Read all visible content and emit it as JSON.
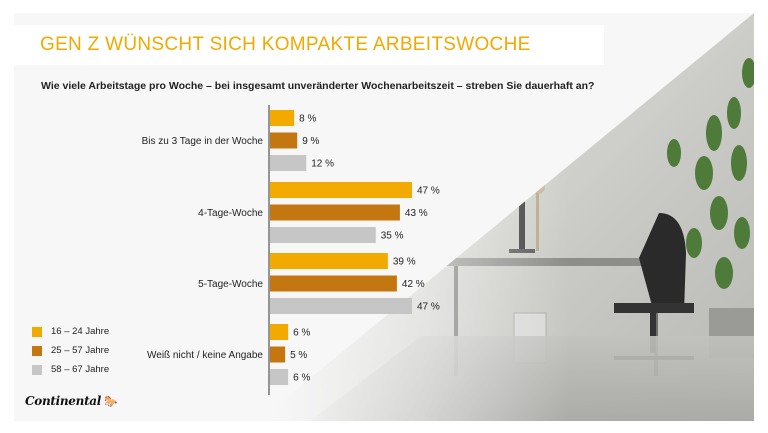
{
  "title": "GEN Z WÜNSCHT SICH KOMPAKTE ARBEITSWOCHE",
  "question": "Wie viele Arbeitstage pro Woche – bei insgesamt unveränderter Wochenarbeitszeit – streben Sie dauerhaft an?",
  "logo": {
    "text": "Continental",
    "mark": "🐎"
  },
  "colors": {
    "accent": "#f2a900",
    "series": [
      "#f2a900",
      "#c47710",
      "#c6c6c6"
    ]
  },
  "chart_data": {
    "type": "bar",
    "orientation": "horizontal",
    "categories": [
      "Bis zu 3 Tage in der Woche",
      "4-Tage-Woche",
      "5-Tage-Woche",
      "Weiß nicht / keine Angabe"
    ],
    "series": [
      {
        "name": "16 – 24 Jahre",
        "values": [
          8,
          47,
          39,
          6
        ],
        "labels": [
          "8 %",
          "47 %",
          "39 %",
          "6 %"
        ],
        "color": "#f2a900"
      },
      {
        "name": "25 – 57 Jahre",
        "values": [
          9,
          43,
          42,
          5
        ],
        "labels": [
          "9 %",
          "43 %",
          "42 %",
          "5 %"
        ],
        "color": "#c47710"
      },
      {
        "name": "58 – 67 Jahre",
        "values": [
          12,
          35,
          47,
          6
        ],
        "labels": [
          "12 %",
          "35 %",
          "47 %",
          "6 %"
        ],
        "color": "#c6c6c6"
      }
    ],
    "unit": "%",
    "xlim": [
      0,
      47
    ],
    "grid": false,
    "legend": "bottom-left"
  }
}
